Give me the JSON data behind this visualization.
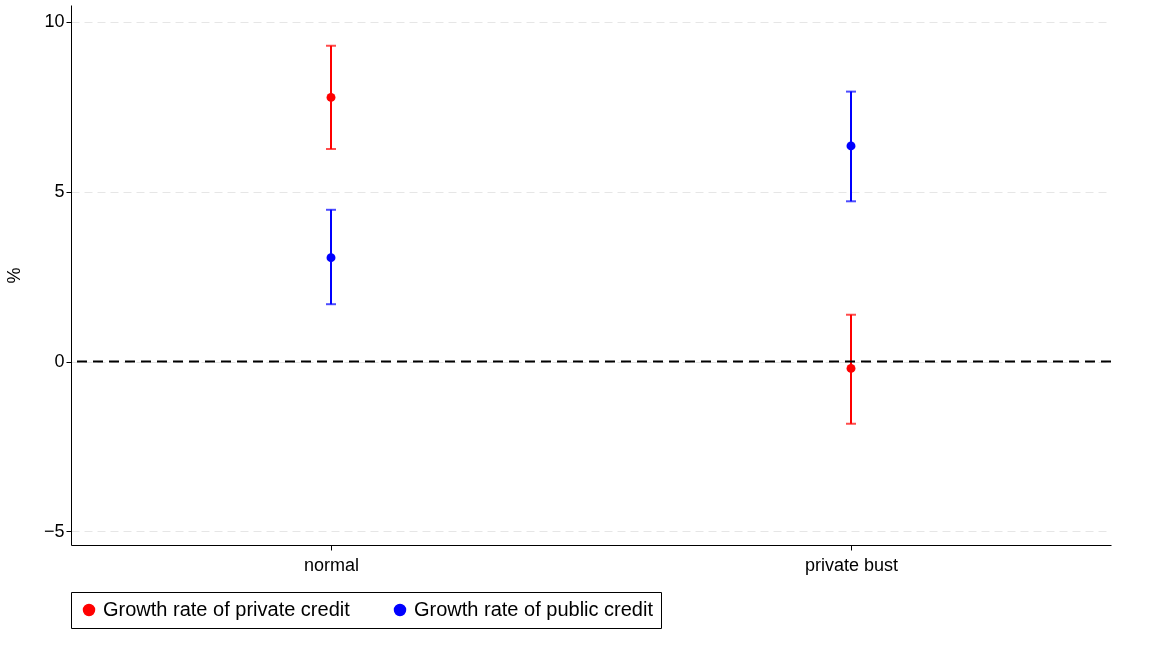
{
  "chart_data": {
    "type": "scatter",
    "ylabel": "%",
    "categories": [
      "normal",
      "private bust"
    ],
    "series": [
      {
        "name": "Growth rate of private credit",
        "color": "#ff0000",
        "values": [
          7.78,
          -0.2
        ],
        "errors": [
          [
            6.26,
            9.3
          ],
          [
            -1.83,
            1.38
          ]
        ]
      },
      {
        "name": "Growth rate of public credit",
        "color": "#0000ff",
        "values": [
          3.06,
          6.35
        ],
        "errors": [
          [
            1.69,
            4.47
          ],
          [
            4.72,
            7.95
          ]
        ]
      }
    ],
    "ylim": [
      -5.4,
      10.5
    ],
    "yticks": [
      -5,
      0,
      5,
      10
    ],
    "grid": "y",
    "legend": "bottom",
    "marker": "circle",
    "ref_lines": [
      {
        "axis": "y",
        "value": 0,
        "color": "#000000",
        "line_style": "dashed"
      }
    ]
  }
}
